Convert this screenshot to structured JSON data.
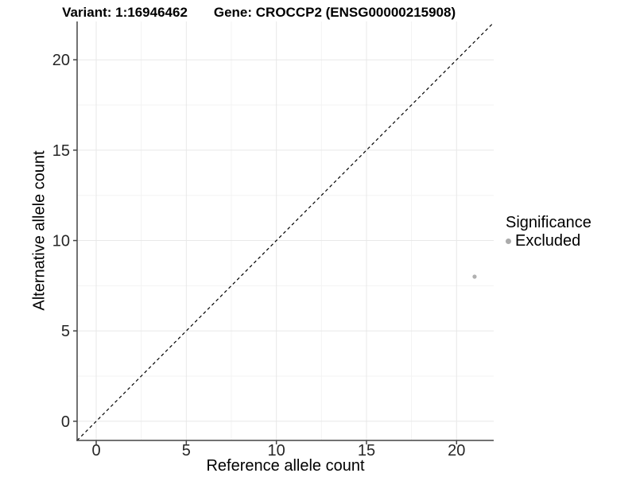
{
  "figure": {
    "title_left": "Variant: 1:16946462",
    "title_right": "Gene: CROCCP2 (ENSG00000215908)"
  },
  "chart_data": {
    "type": "scatter",
    "title": "Variant: 1:16946462   Gene: CROCCP2 (ENSG00000215908)",
    "xlabel": "Reference allele count",
    "ylabel": "Alternative allele count",
    "xlim": [
      -1.06,
      22.06
    ],
    "ylim": [
      -1.06,
      22.12
    ],
    "x_ticks": [
      0,
      5,
      10,
      15,
      20
    ],
    "y_ticks": [
      0,
      5,
      10,
      15,
      20
    ],
    "x_minor_ticks": [
      2.5,
      7.5,
      12.5,
      17.5
    ],
    "y_minor_ticks": [
      2.5,
      7.5,
      12.5,
      17.5
    ],
    "grid": true,
    "identity_line": {
      "style": "dashed",
      "slope": 1,
      "intercept": 0,
      "from": -1.06,
      "to": 22.06
    },
    "series": [
      {
        "name": "Excluded",
        "color": "#b0b0b0",
        "points": [
          {
            "x": 21,
            "y": 8
          }
        ]
      }
    ],
    "legend": {
      "title": "Significance",
      "position": "right",
      "items": [
        {
          "label": "Excluded",
          "color": "#ababab"
        }
      ]
    },
    "colors": {
      "grid_major": "#e8e8e8",
      "grid_minor": "#f3f3f3",
      "axis_line": "#444444",
      "tick_label": "#262626",
      "identity_line": "#000000",
      "background": "#ffffff"
    }
  }
}
